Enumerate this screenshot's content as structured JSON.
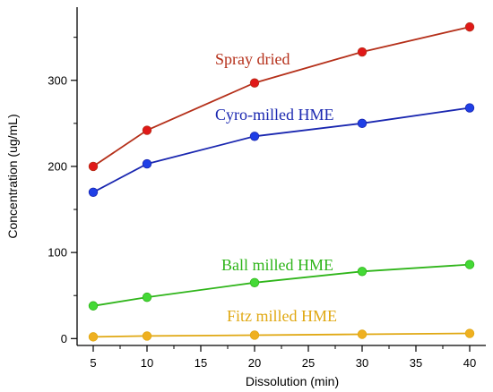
{
  "chart_data": {
    "type": "line",
    "xlabel": "Dissolution (min)",
    "ylabel": "Concentration (ug/mL)",
    "xlim": [
      3.5,
      41.5
    ],
    "ylim": [
      -8,
      385
    ],
    "xticks": [
      5,
      10,
      15,
      20,
      25,
      30,
      35,
      40
    ],
    "yticks": [
      0,
      100,
      200,
      300
    ],
    "grid": false,
    "legend": "inline labels",
    "x": [
      5,
      10,
      20,
      30,
      40
    ],
    "series": [
      {
        "name": "Spray dried",
        "color": "#b5301a",
        "marker_color": "#e01818",
        "values": [
          200,
          242,
          297,
          333,
          362
        ]
      },
      {
        "name": "Cyro-milled HME",
        "color": "#1a27b0",
        "marker_color": "#1f3fe6",
        "values": [
          170,
          203,
          235,
          250,
          268
        ]
      },
      {
        "name": "Ball milled HME",
        "color": "#2fb51a",
        "marker_color": "#44d936",
        "values": [
          38,
          48,
          65,
          78,
          86
        ]
      },
      {
        "name": "Fitz milled HME",
        "color": "#e0a812",
        "marker_color": "#efb020",
        "values": [
          2,
          3,
          4,
          5,
          6
        ]
      }
    ]
  }
}
